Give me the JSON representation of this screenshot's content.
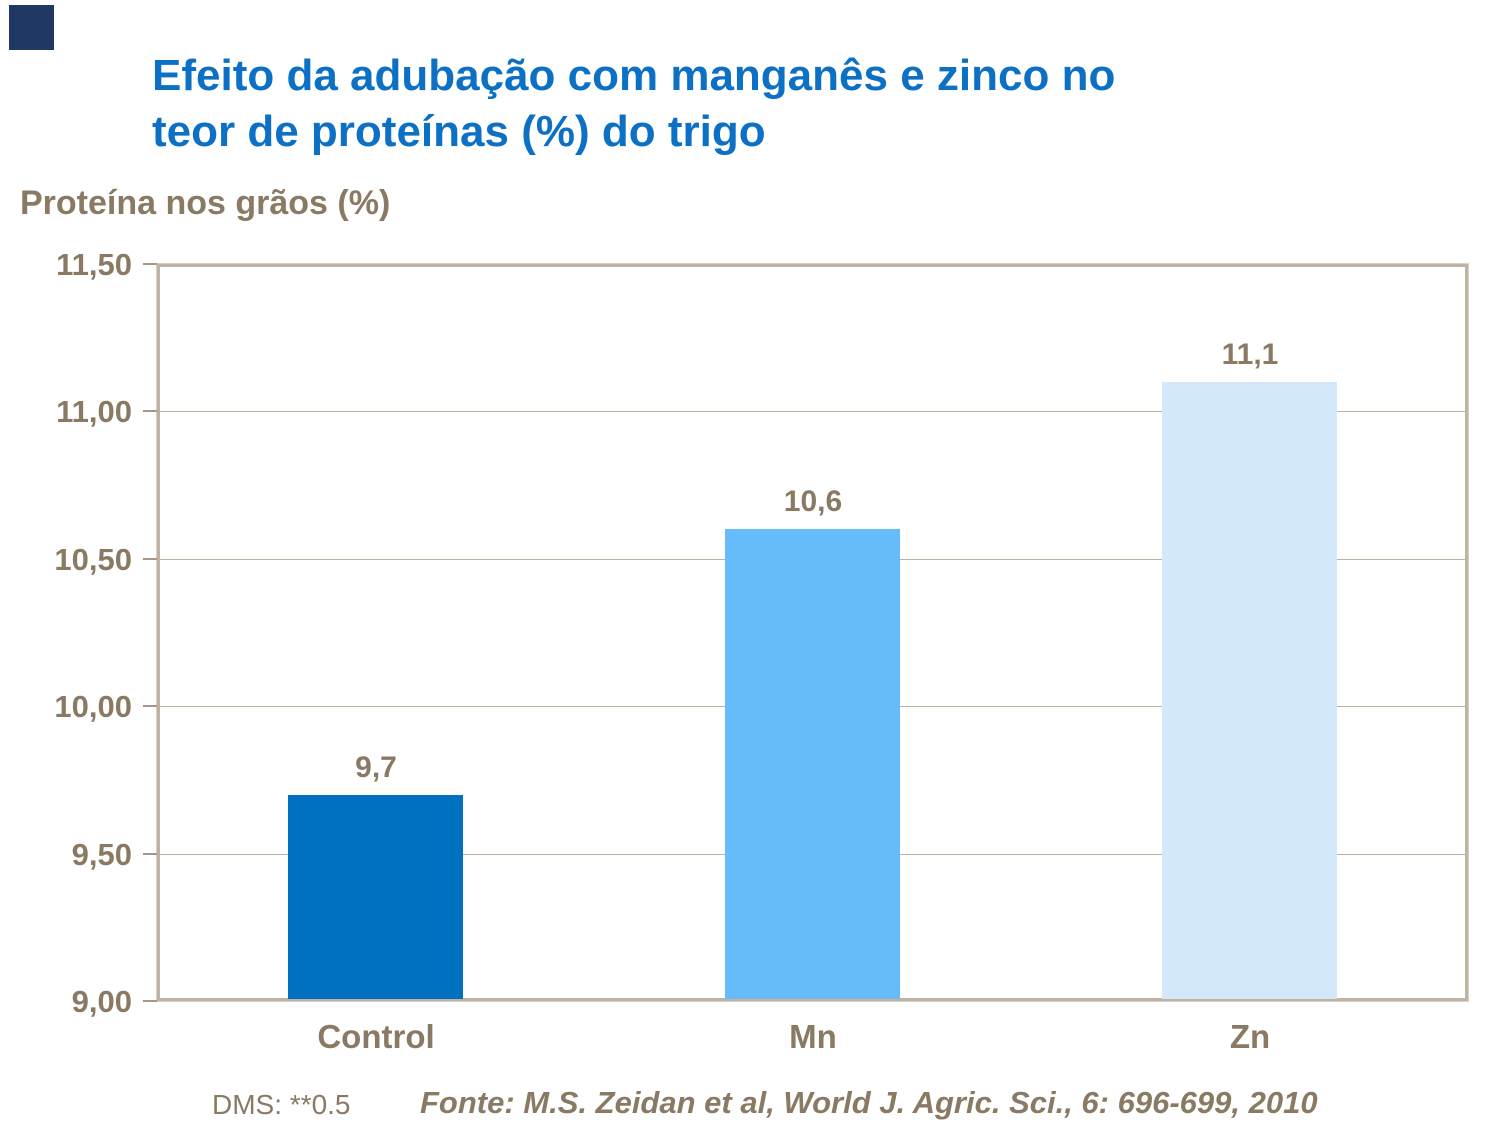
{
  "page": {
    "background": "#FFFFFF"
  },
  "decor": {
    "corner_square_color": "#1F3864"
  },
  "title": {
    "line1": "Efeito da adubação com manganês e zinco no",
    "line2": "teor de proteínas (%) do trigo",
    "color": "#0C70C5"
  },
  "axis_title": {
    "text": "Proteína nos grãos (%)"
  },
  "footer": {
    "dms": "DMS: **0.5",
    "fonte": "Fonte: M.S. Zeidan et al, World J. Agric. Sci., 6: 696-699, 2010"
  },
  "colors": {
    "text_brown": "#8A7A64",
    "plot_border": "#BFB3A5",
    "plot_border_outer": "#D8CFC3",
    "gridline": "#BDB29F",
    "tick_mark": "#A59886"
  },
  "chart_data": {
    "type": "bar",
    "title": "Efeito da adubação com manganês e zinco no teor de proteínas (%) do trigo",
    "xlabel": "",
    "ylabel": "Proteína nos grãos (%)",
    "categories": [
      "Control",
      "Mn",
      "Zn"
    ],
    "values": [
      9.7,
      10.6,
      11.1
    ],
    "value_labels": [
      "9,7",
      "10,6",
      "11,1"
    ],
    "bar_colors": [
      "#0070C0",
      "#66BCFA",
      "#D4E8FC"
    ],
    "ylim": [
      9.0,
      11.5
    ],
    "yticks": [
      {
        "label": "11,50",
        "value": 11.5
      },
      {
        "label": "11,00",
        "value": 11.0
      },
      {
        "label": "10,50",
        "value": 10.5
      },
      {
        "label": "10,00",
        "value": 10.0
      },
      {
        "label": "9,50",
        "value": 9.5
      },
      {
        "label": "9,00",
        "value": 9.0
      }
    ],
    "grid": true,
    "legend": false,
    "annotations": [
      "DMS: **0.5",
      "Fonte: M.S. Zeidan et al, World J. Agric. Sci., 6: 696-699, 2010"
    ]
  }
}
